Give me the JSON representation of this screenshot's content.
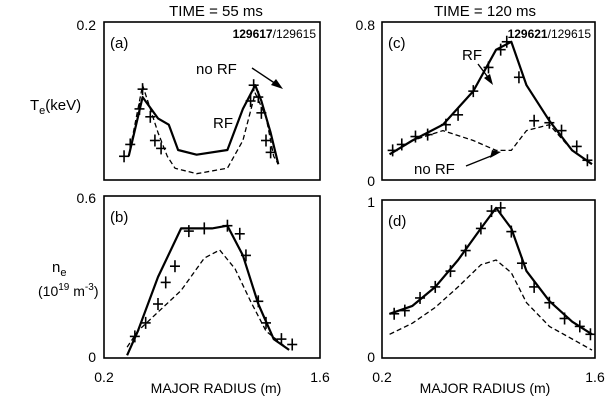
{
  "chart_data": [
    {
      "type": "line",
      "panel": "(a)",
      "title": "TIME = 55 ms",
      "ylabel": "T",
      "ylabel_sub": "e",
      "ylabel_unit": "(keV)",
      "shot_bold": "129617",
      "shot_rest": "/129615",
      "xlim": [
        0.2,
        1.6
      ],
      "ylim": [
        0,
        0.2
      ],
      "ytick_top": "0.2",
      "ytick_bottom": "",
      "annotations": [
        {
          "text": "no RF"
        },
        {
          "text": "RF"
        }
      ],
      "series": [
        {
          "name": "RF",
          "style": "solid",
          "x": [
            0.36,
            0.45,
            0.55,
            0.62,
            0.68,
            0.8,
            1.0,
            1.1,
            1.18,
            1.22,
            1.28,
            1.33
          ],
          "y": [
            0.03,
            0.105,
            0.078,
            0.07,
            0.038,
            0.032,
            0.038,
            0.09,
            0.12,
            0.1,
            0.06,
            0.02
          ]
        },
        {
          "name": "no RF",
          "style": "dashed",
          "x": [
            0.36,
            0.45,
            0.55,
            0.61,
            0.66,
            0.8,
            1.0,
            1.1,
            1.18,
            1.25,
            1.3,
            1.33
          ],
          "y": [
            0.03,
            0.12,
            0.06,
            0.03,
            0.015,
            0.008,
            0.015,
            0.05,
            0.11,
            0.08,
            0.03,
            0.02
          ]
        }
      ],
      "markers": {
        "x": [
          0.33,
          0.37,
          0.43,
          0.45,
          0.5,
          0.53,
          0.57,
          1.15,
          1.17,
          1.2,
          1.22,
          1.25,
          1.28
        ],
        "y": [
          0.03,
          0.045,
          0.09,
          0.115,
          0.08,
          0.05,
          0.04,
          0.1,
          0.12,
          0.105,
          0.085,
          0.05,
          0.035
        ]
      }
    },
    {
      "type": "line",
      "panel": "(b)",
      "ylabel": "n",
      "ylabel_sub": "e",
      "ylabel_unit_pre": "(10",
      "ylabel_unit_sup": "19",
      "ylabel_unit_post": " m",
      "ylabel_unit_sup2": "-3",
      "ylabel_unit_end": ")",
      "xlabel": "MAJOR RADIUS (m)",
      "xtick_left": "0.2",
      "xtick_right": "1.6",
      "xlim": [
        0.2,
        1.6
      ],
      "ylim": [
        0,
        0.6
      ],
      "ytick_top": "0.6",
      "ytick_bottom": "0",
      "series": [
        {
          "name": "RF",
          "style": "solid",
          "x": [
            0.35,
            0.42,
            0.55,
            0.7,
            0.9,
            1.0,
            1.1,
            1.2,
            1.3,
            1.4
          ],
          "y": [
            0.01,
            0.1,
            0.3,
            0.48,
            0.48,
            0.49,
            0.38,
            0.2,
            0.07,
            0.03
          ]
        },
        {
          "name": "no RF",
          "style": "dashed",
          "x": [
            0.35,
            0.42,
            0.55,
            0.7,
            0.85,
            0.95,
            1.05,
            1.15,
            1.25,
            1.4
          ],
          "y": [
            0.04,
            0.1,
            0.17,
            0.25,
            0.37,
            0.4,
            0.33,
            0.21,
            0.1,
            0.03
          ]
        }
      ],
      "markers": {
        "x": [
          0.4,
          0.47,
          0.55,
          0.6,
          0.66,
          0.75,
          0.85,
          1.0,
          1.08,
          1.12,
          1.2,
          1.25,
          1.35,
          1.42
        ],
        "y": [
          0.08,
          0.13,
          0.2,
          0.28,
          0.34,
          0.47,
          0.48,
          0.49,
          0.46,
          0.38,
          0.21,
          0.13,
          0.07,
          0.05
        ]
      }
    },
    {
      "type": "line",
      "panel": "(c)",
      "title": "TIME = 120 ms",
      "shot_bold": "129621",
      "shot_rest": "/129615",
      "xlim": [
        0.2,
        1.6
      ],
      "ylim": [
        0,
        0.8
      ],
      "ytick_top": "0.8",
      "ytick_bottom": "0",
      "annotations": [
        {
          "text": "RF"
        },
        {
          "text": "no RF"
        }
      ],
      "series": [
        {
          "name": "RF",
          "style": "solid",
          "x": [
            0.25,
            0.4,
            0.6,
            0.8,
            0.95,
            1.05,
            1.15,
            1.3,
            1.45,
            1.58
          ],
          "y": [
            0.13,
            0.2,
            0.28,
            0.45,
            0.66,
            0.7,
            0.48,
            0.3,
            0.15,
            0.08
          ]
        },
        {
          "name": "no RF",
          "style": "dashed",
          "x": [
            0.25,
            0.4,
            0.6,
            0.8,
            0.95,
            1.05,
            1.15,
            1.3,
            1.45,
            1.58
          ],
          "y": [
            0.13,
            0.2,
            0.25,
            0.2,
            0.15,
            0.15,
            0.25,
            0.28,
            0.15,
            0.08
          ]
        }
      ],
      "markers": {
        "x": [
          0.27,
          0.33,
          0.42,
          0.5,
          0.62,
          0.7,
          0.8,
          0.9,
          0.98,
          1.02,
          1.1,
          1.2,
          1.3,
          1.38,
          1.48,
          1.55
        ],
        "y": [
          0.15,
          0.18,
          0.22,
          0.23,
          0.28,
          0.33,
          0.45,
          0.57,
          0.66,
          0.7,
          0.52,
          0.3,
          0.29,
          0.25,
          0.17,
          0.1
        ]
      }
    },
    {
      "type": "line",
      "panel": "(d)",
      "xlabel": "MAJOR RADIUS (m)",
      "xtick_left": "0.2",
      "xtick_right": "1.6",
      "xlim": [
        0.2,
        1.6
      ],
      "ylim": [
        0,
        1
      ],
      "ytick_top": "1",
      "ytick_bottom": "0",
      "series": [
        {
          "name": "RF",
          "style": "solid",
          "x": [
            0.25,
            0.4,
            0.55,
            0.7,
            0.85,
            0.95,
            1.05,
            1.15,
            1.3,
            1.45,
            1.58
          ],
          "y": [
            0.28,
            0.33,
            0.45,
            0.62,
            0.82,
            0.95,
            0.82,
            0.55,
            0.36,
            0.23,
            0.15
          ]
        },
        {
          "name": "no RF",
          "style": "dashed",
          "x": [
            0.25,
            0.4,
            0.55,
            0.7,
            0.85,
            0.95,
            1.05,
            1.15,
            1.3,
            1.45,
            1.58
          ],
          "y": [
            0.15,
            0.22,
            0.32,
            0.45,
            0.59,
            0.62,
            0.54,
            0.35,
            0.2,
            0.12,
            0.05
          ]
        }
      ],
      "markers": {
        "x": [
          0.28,
          0.35,
          0.45,
          0.55,
          0.65,
          0.75,
          0.85,
          0.92,
          0.98,
          1.05,
          1.12,
          1.2,
          1.3,
          1.4,
          1.5,
          1.57
        ],
        "y": [
          0.28,
          0.3,
          0.38,
          0.45,
          0.55,
          0.68,
          0.82,
          0.93,
          0.95,
          0.8,
          0.6,
          0.45,
          0.35,
          0.25,
          0.2,
          0.15
        ]
      }
    }
  ]
}
